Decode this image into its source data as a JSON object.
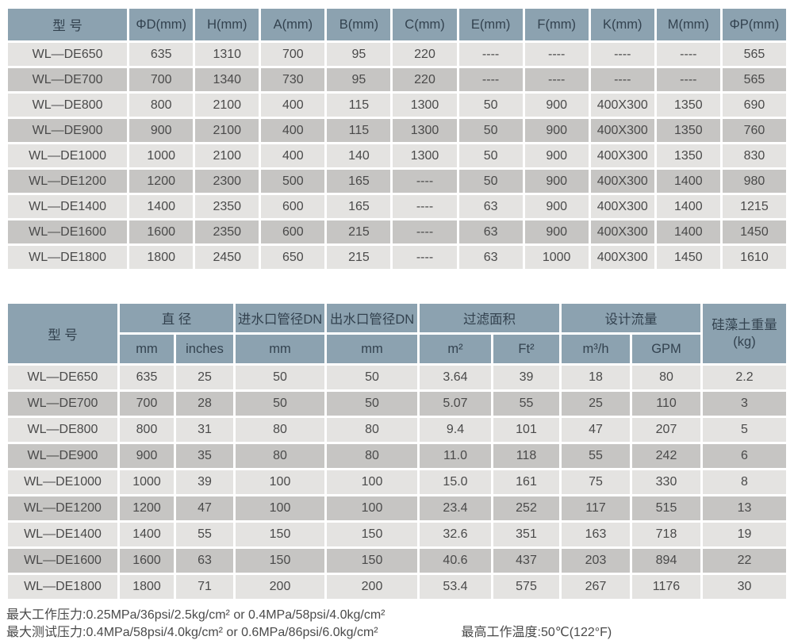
{
  "colors": {
    "header_bg": "#8CA2B0",
    "header_text": "#33424F",
    "row_light": "#E4E3E1",
    "row_dark": "#C6C5C3",
    "body_text": "#4A4A4A",
    "page_bg": "#FFFFFF"
  },
  "table1": {
    "headers": [
      "型  号",
      "ΦD(mm)",
      "H(mm)",
      "A(mm)",
      "B(mm)",
      "C(mm)",
      "E(mm)",
      "F(mm)",
      "K(mm)",
      "M(mm)",
      "ΦP(mm)"
    ],
    "rows": [
      [
        "WL—DE650",
        "635",
        "1310",
        "700",
        "95",
        "220",
        "----",
        "----",
        "----",
        "----",
        "565"
      ],
      [
        "WL—DE700",
        "700",
        "1340",
        "730",
        "95",
        "220",
        "----",
        "----",
        "----",
        "----",
        "565"
      ],
      [
        "WL—DE800",
        "800",
        "2100",
        "400",
        "115",
        "1300",
        "50",
        "900",
        "400X300",
        "1350",
        "690"
      ],
      [
        "WL—DE900",
        "900",
        "2100",
        "400",
        "115",
        "1300",
        "50",
        "900",
        "400X300",
        "1350",
        "760"
      ],
      [
        "WL—DE1000",
        "1000",
        "2100",
        "400",
        "140",
        "1300",
        "50",
        "900",
        "400X300",
        "1350",
        "830"
      ],
      [
        "WL—DE1200",
        "1200",
        "2300",
        "500",
        "165",
        "----",
        "50",
        "900",
        "400X300",
        "1400",
        "980"
      ],
      [
        "WL—DE1400",
        "1400",
        "2350",
        "600",
        "165",
        "----",
        "63",
        "900",
        "400X300",
        "1400",
        "1215"
      ],
      [
        "WL—DE1600",
        "1600",
        "2350",
        "600",
        "215",
        "----",
        "63",
        "900",
        "400X300",
        "1400",
        "1450"
      ],
      [
        "WL—DE1800",
        "1800",
        "2450",
        "650",
        "215",
        "----",
        "63",
        "1000",
        "400X300",
        "1450",
        "1610"
      ]
    ]
  },
  "table2": {
    "header": {
      "model": "型  号",
      "diameter": "直 径",
      "inlet": "进水口管径DN",
      "outlet": "出水口管径DN",
      "filter_area": "过滤面积",
      "design_flow": "设计流量",
      "de_weight": "硅藻土重量",
      "de_weight_unit": "(kg)",
      "sub_mm": "mm",
      "sub_inches": "inches",
      "sub_inlet_mm": "mm",
      "sub_outlet_mm": "mm",
      "sub_m2": "m²",
      "sub_ft2": "Ft²",
      "sub_m3h": "m³/h",
      "sub_gpm": "GPM"
    },
    "rows": [
      [
        "WL—DE650",
        "635",
        "25",
        "50",
        "50",
        "3.64",
        "39",
        "18",
        "80",
        "2.2"
      ],
      [
        "WL—DE700",
        "700",
        "28",
        "50",
        "50",
        "5.07",
        "55",
        "25",
        "110",
        "3"
      ],
      [
        "WL—DE800",
        "800",
        "31",
        "80",
        "80",
        "9.4",
        "101",
        "47",
        "207",
        "5"
      ],
      [
        "WL—DE900",
        "900",
        "35",
        "80",
        "80",
        "11.0",
        "118",
        "55",
        "242",
        "6"
      ],
      [
        "WL—DE1000",
        "1000",
        "39",
        "100",
        "100",
        "15.0",
        "161",
        "75",
        "330",
        "8"
      ],
      [
        "WL—DE1200",
        "1200",
        "47",
        "100",
        "100",
        "23.4",
        "252",
        "117",
        "515",
        "13"
      ],
      [
        "WL—DE1400",
        "1400",
        "55",
        "150",
        "150",
        "32.6",
        "351",
        "163",
        "718",
        "19"
      ],
      [
        "WL—DE1600",
        "1600",
        "63",
        "150",
        "150",
        "40.6",
        "437",
        "203",
        "894",
        "22"
      ],
      [
        "WL—DE1800",
        "1800",
        "71",
        "200",
        "200",
        "53.4",
        "575",
        "267",
        "1176",
        "30"
      ]
    ]
  },
  "footer": {
    "line1": "最大工作压力:0.25MPa/36psi/2.5kg/cm² or 0.4MPa/58psi/4.0kg/cm²",
    "line2": "最大测试压力:0.4MPa/58psi/4.0kg/cm² or 0.6MPa/86psi/6.0kg/cm²",
    "temp": "最高工作温度:50℃(122°F)"
  }
}
